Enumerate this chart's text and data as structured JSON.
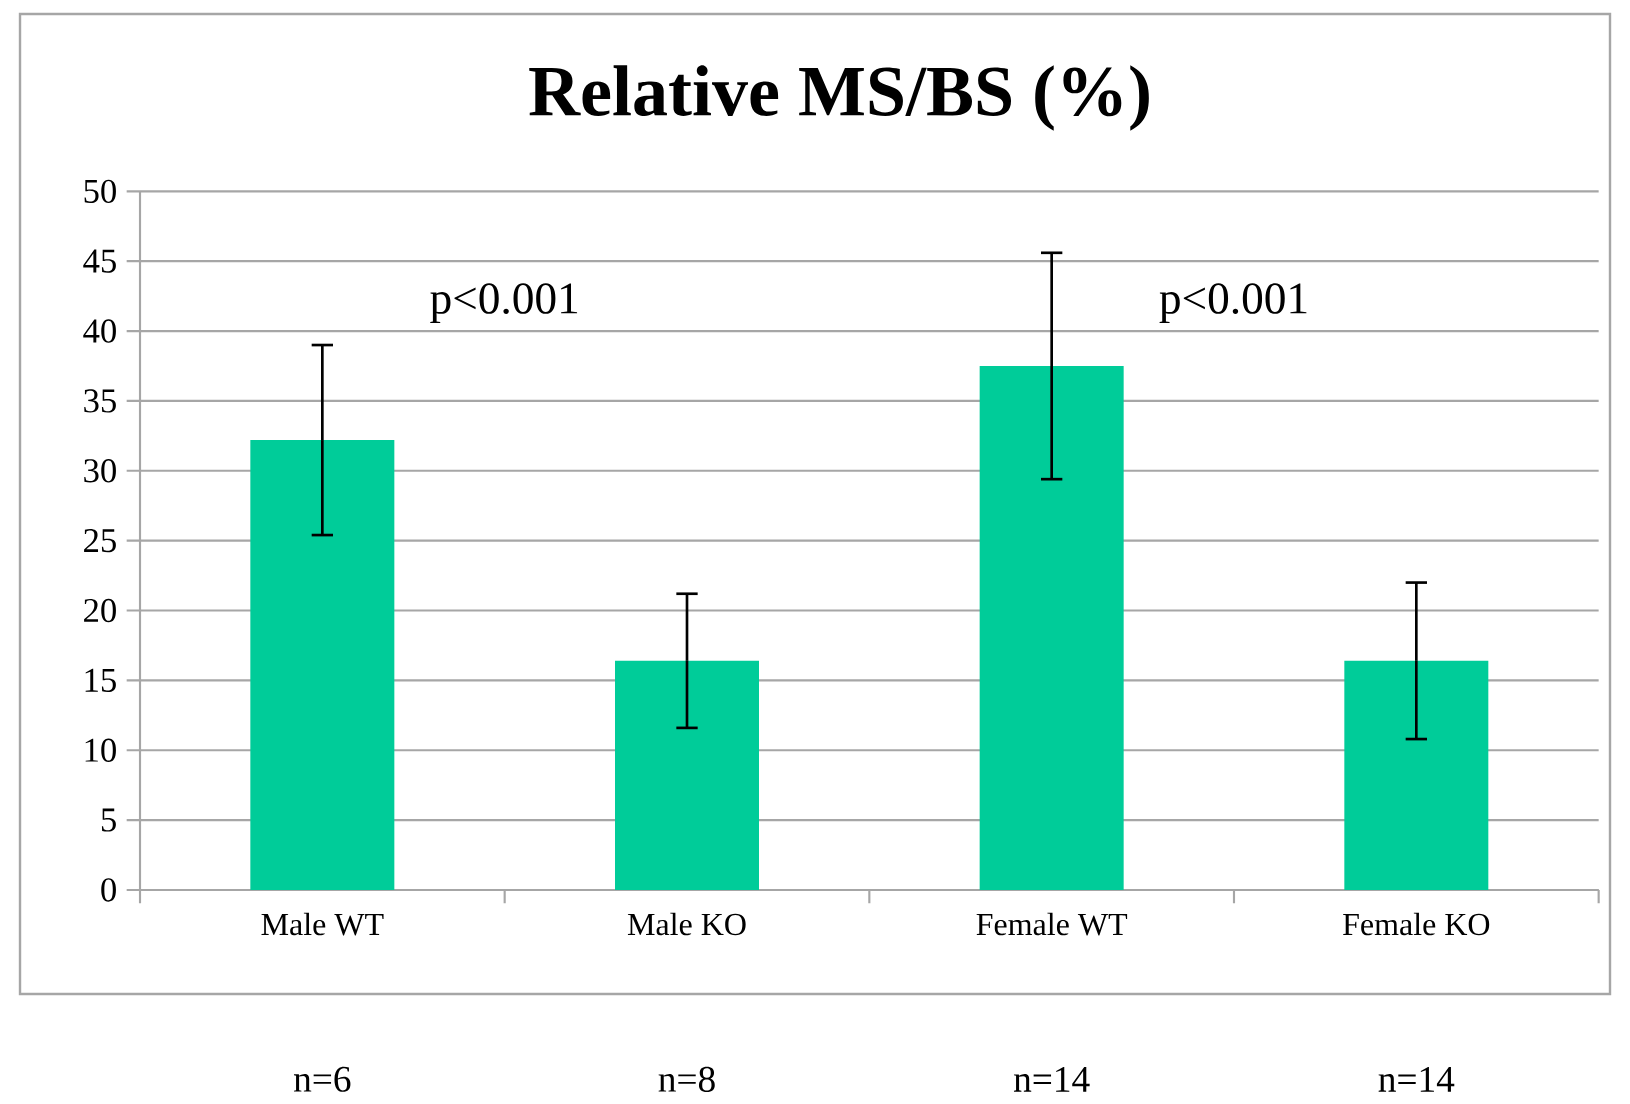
{
  "chart_data": {
    "type": "bar",
    "title": "Relative MS/BS (%)",
    "categories": [
      "Male WT",
      "Male KO",
      "Female WT",
      "Female KO"
    ],
    "values": [
      32.2,
      16.4,
      37.5,
      16.4
    ],
    "errors": [
      6.8,
      4.8,
      8.1,
      5.6
    ],
    "color": "#00cc99",
    "ylim": [
      0,
      50
    ],
    "yticks": [
      0,
      5,
      10,
      15,
      20,
      25,
      30,
      35,
      40,
      45,
      50
    ],
    "grid": "y",
    "annotations": [
      "p<0.001",
      "p<0.001",
      "n=6",
      "n=8",
      "n=14",
      "n=14"
    ]
  }
}
